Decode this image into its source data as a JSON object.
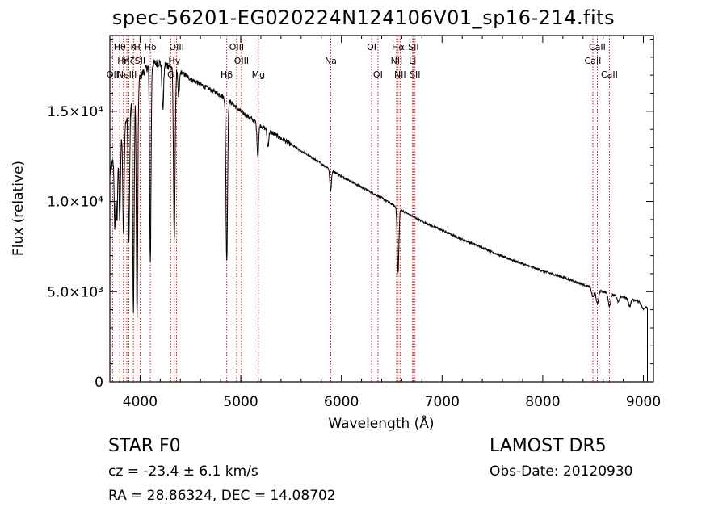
{
  "title": "spec-56201-EG020224N124106V01_sp16-214.fits",
  "info": {
    "spectype": "STAR     F0",
    "survey": "LAMOST  DR5",
    "cz": "cz = -23.4 ± 6.1 km/s",
    "obsdate": "Obs-Date: 20120930",
    "radec": "RA =  28.86324, DEC =  14.08702"
  },
  "chart_data": {
    "type": "line",
    "title": "spec-56201-EG020224N124106V01_sp16-214.fits",
    "xlabel": "Wavelength (Å)",
    "ylabel": "Flux (relative)",
    "xlim": [
      3700,
      9100
    ],
    "ylim": [
      0,
      19200
    ],
    "xticks": [
      4000,
      5000,
      6000,
      7000,
      8000,
      9000
    ],
    "xtick_labels": [
      "4000",
      "5000",
      "6000",
      "7000",
      "8000",
      "9000"
    ],
    "yticks": [
      0,
      5000,
      10000,
      15000
    ],
    "ytick_labels": [
      "0",
      "5.0×10³",
      "1.0×10⁴",
      "1.5×10⁴"
    ],
    "series": [
      {
        "continuum": [
          [
            3700,
            11500
          ],
          [
            3740,
            12500
          ],
          [
            3800,
            13500
          ],
          [
            3850,
            14300
          ],
          [
            3900,
            15200
          ],
          [
            3950,
            16000
          ],
          [
            4000,
            16900
          ],
          [
            4050,
            17300
          ],
          [
            4100,
            17600
          ],
          [
            4200,
            17700
          ],
          [
            4300,
            17500
          ],
          [
            4400,
            17200
          ],
          [
            4500,
            16800
          ],
          [
            4600,
            16500
          ],
          [
            4700,
            16200
          ],
          [
            4800,
            15900
          ],
          [
            4900,
            15500
          ],
          [
            5000,
            15000
          ],
          [
            5200,
            14200
          ],
          [
            5400,
            13500
          ],
          [
            5600,
            12800
          ],
          [
            5800,
            12100
          ],
          [
            6000,
            11400
          ],
          [
            6200,
            10800
          ],
          [
            6400,
            10200
          ],
          [
            6600,
            9500
          ],
          [
            6800,
            8900
          ],
          [
            7000,
            8400
          ],
          [
            7200,
            7900
          ],
          [
            7400,
            7450
          ],
          [
            7600,
            6950
          ],
          [
            7800,
            6550
          ],
          [
            8000,
            6150
          ],
          [
            8200,
            5800
          ],
          [
            8400,
            5400
          ],
          [
            8600,
            5000
          ],
          [
            8800,
            4700
          ],
          [
            8900,
            4550
          ],
          [
            8960,
            4450
          ],
          [
            9000,
            4000
          ],
          [
            9020,
            4200
          ],
          [
            9040,
            4100
          ]
        ],
        "absorption_lines": [
          {
            "wave": 3750,
            "depth": 4200
          },
          {
            "wave": 3771,
            "depth": 4000
          },
          {
            "wave": 3798,
            "depth": 4500
          },
          {
            "wave": 3835,
            "depth": 6000
          },
          {
            "wave": 3889,
            "depth": 7000
          },
          {
            "wave": 3934,
            "depth": 12000
          },
          {
            "wave": 3970,
            "depth": 13000
          },
          {
            "wave": 4102,
            "depth": 11000
          },
          {
            "wave": 4226,
            "depth": 2500
          },
          {
            "wave": 4340,
            "depth": 9500
          },
          {
            "wave": 4383,
            "depth": 1500
          },
          {
            "wave": 4861,
            "depth": 9000
          },
          {
            "wave": 5170,
            "depth": 1800
          },
          {
            "wave": 5270,
            "depth": 900
          },
          {
            "wave": 5893,
            "depth": 1200
          },
          {
            "wave": 6563,
            "depth": 3600
          },
          {
            "wave": 8498,
            "depth": 500
          },
          {
            "wave": 8542,
            "depth": 800
          },
          {
            "wave": 8662,
            "depth": 700
          },
          {
            "wave": 8750,
            "depth": 350
          },
          {
            "wave": 8863,
            "depth": 400
          }
        ],
        "drop_to_zero_at": [
          3700,
          9040
        ]
      }
    ],
    "line_markers": [
      {
        "wave": 3727,
        "label": "OII",
        "row": 3
      },
      {
        "wave": 3798,
        "label": "Hθ",
        "row": 1
      },
      {
        "wave": 3835,
        "label": "Hη",
        "row": 2
      },
      {
        "wave": 3869,
        "label": "NeIII",
        "row": 3
      },
      {
        "wave": 3889,
        "label": "Hζ",
        "row": 2
      },
      {
        "wave": 3934,
        "label": "K",
        "row": 1
      },
      {
        "wave": 3970,
        "label": "H",
        "row": 1
      },
      {
        "wave": 4000,
        "label": "SII",
        "row": 2
      },
      {
        "wave": 4102,
        "label": "Hδ",
        "row": 1
      },
      {
        "wave": 4304,
        "label": "G",
        "row": 3
      },
      {
        "wave": 4340,
        "label": "Hγ",
        "row": 2
      },
      {
        "wave": 4363,
        "label": "OIII",
        "row": 1
      },
      {
        "wave": 4861,
        "label": "Hβ",
        "row": 3
      },
      {
        "wave": 4959,
        "label": "OIII",
        "row": 1
      },
      {
        "wave": 5007,
        "label": "OIII",
        "row": 2
      },
      {
        "wave": 5175,
        "label": "Mg",
        "row": 3
      },
      {
        "wave": 5894,
        "label": "Na",
        "row": 2
      },
      {
        "wave": 6300,
        "label": "OI",
        "row": 1
      },
      {
        "wave": 6363,
        "label": "OI",
        "row": 3
      },
      {
        "wave": 6548,
        "label": "NII",
        "row": 2
      },
      {
        "wave": 6563,
        "label": "Hα",
        "row": 1
      },
      {
        "wave": 6583,
        "label": "NII",
        "row": 3
      },
      {
        "wave": 6707,
        "label": "Li",
        "row": 2
      },
      {
        "wave": 6716,
        "label": "SII",
        "row": 1
      },
      {
        "wave": 6731,
        "label": "SII",
        "row": 3
      },
      {
        "wave": 8498,
        "label": "CaII",
        "row": 2
      },
      {
        "wave": 8542,
        "label": "CaII",
        "row": 1
      },
      {
        "wave": 8662,
        "label": "CaII",
        "row": 3
      }
    ]
  },
  "colors": {
    "background": "#ffffff",
    "axes": "#000000",
    "spectrum": "#000000",
    "line_markers": "#c00000"
  }
}
